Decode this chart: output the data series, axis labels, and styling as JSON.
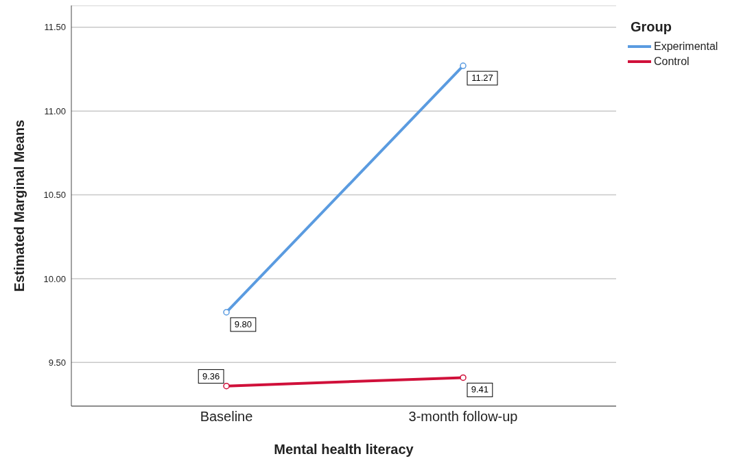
{
  "chart_data": {
    "type": "line",
    "xlabel": "Mental health literacy",
    "ylabel": "Estimated Marginal Means",
    "legend_title": "Group",
    "categories": [
      "Baseline",
      "3-month follow-up"
    ],
    "series": [
      {
        "name": "Experimental",
        "color": "#5a9be0",
        "values": [
          9.8,
          11.27
        ],
        "value_labels": [
          "9.80",
          "11.27"
        ]
      },
      {
        "name": "Control",
        "color": "#d0103a",
        "values": [
          9.36,
          9.41
        ],
        "value_labels": [
          "9.36",
          "9.41"
        ]
      }
    ],
    "ylim": [
      9.24,
      11.63
    ],
    "yticks": [
      {
        "value": 9.5,
        "label": "9.50"
      },
      {
        "value": 10,
        "label": "10.00"
      },
      {
        "value": 10.5,
        "label": "10.50"
      },
      {
        "value": 11,
        "label": "11.00"
      },
      {
        "value": 11.5,
        "label": "11.50"
      }
    ],
    "grid": "y",
    "legend": "top right",
    "marker": "circle",
    "line_style": "solid"
  }
}
